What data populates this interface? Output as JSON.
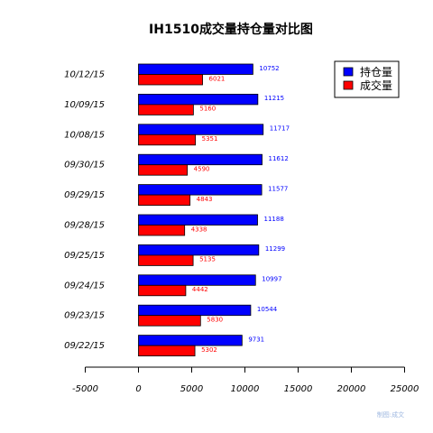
{
  "chart_data": {
    "type": "bar",
    "orientation": "horizontal",
    "title": "IH1510成交量持仓量对比图",
    "categories": [
      "10/12/15",
      "10/09/15",
      "10/08/15",
      "09/30/15",
      "09/29/15",
      "09/28/15",
      "09/25/15",
      "09/24/15",
      "09/23/15",
      "09/22/15"
    ],
    "series": [
      {
        "name": "持仓量",
        "color": "#0000ff",
        "values": [
          10752,
          11215,
          11717,
          11612,
          11577,
          11188,
          11299,
          10997,
          10544,
          9731
        ]
      },
      {
        "name": "成交量",
        "color": "#ff0000",
        "values": [
          6021,
          5160,
          5351,
          4590,
          4843,
          4338,
          5135,
          4442,
          5830,
          5302
        ]
      }
    ],
    "xlim": [
      -5000,
      25000
    ],
    "xticks": [
      "-5000",
      "0",
      "5000",
      "10000",
      "15000",
      "20000",
      "25000"
    ],
    "legend": "top-right",
    "grid": false
  },
  "watermark": "制图:成文"
}
